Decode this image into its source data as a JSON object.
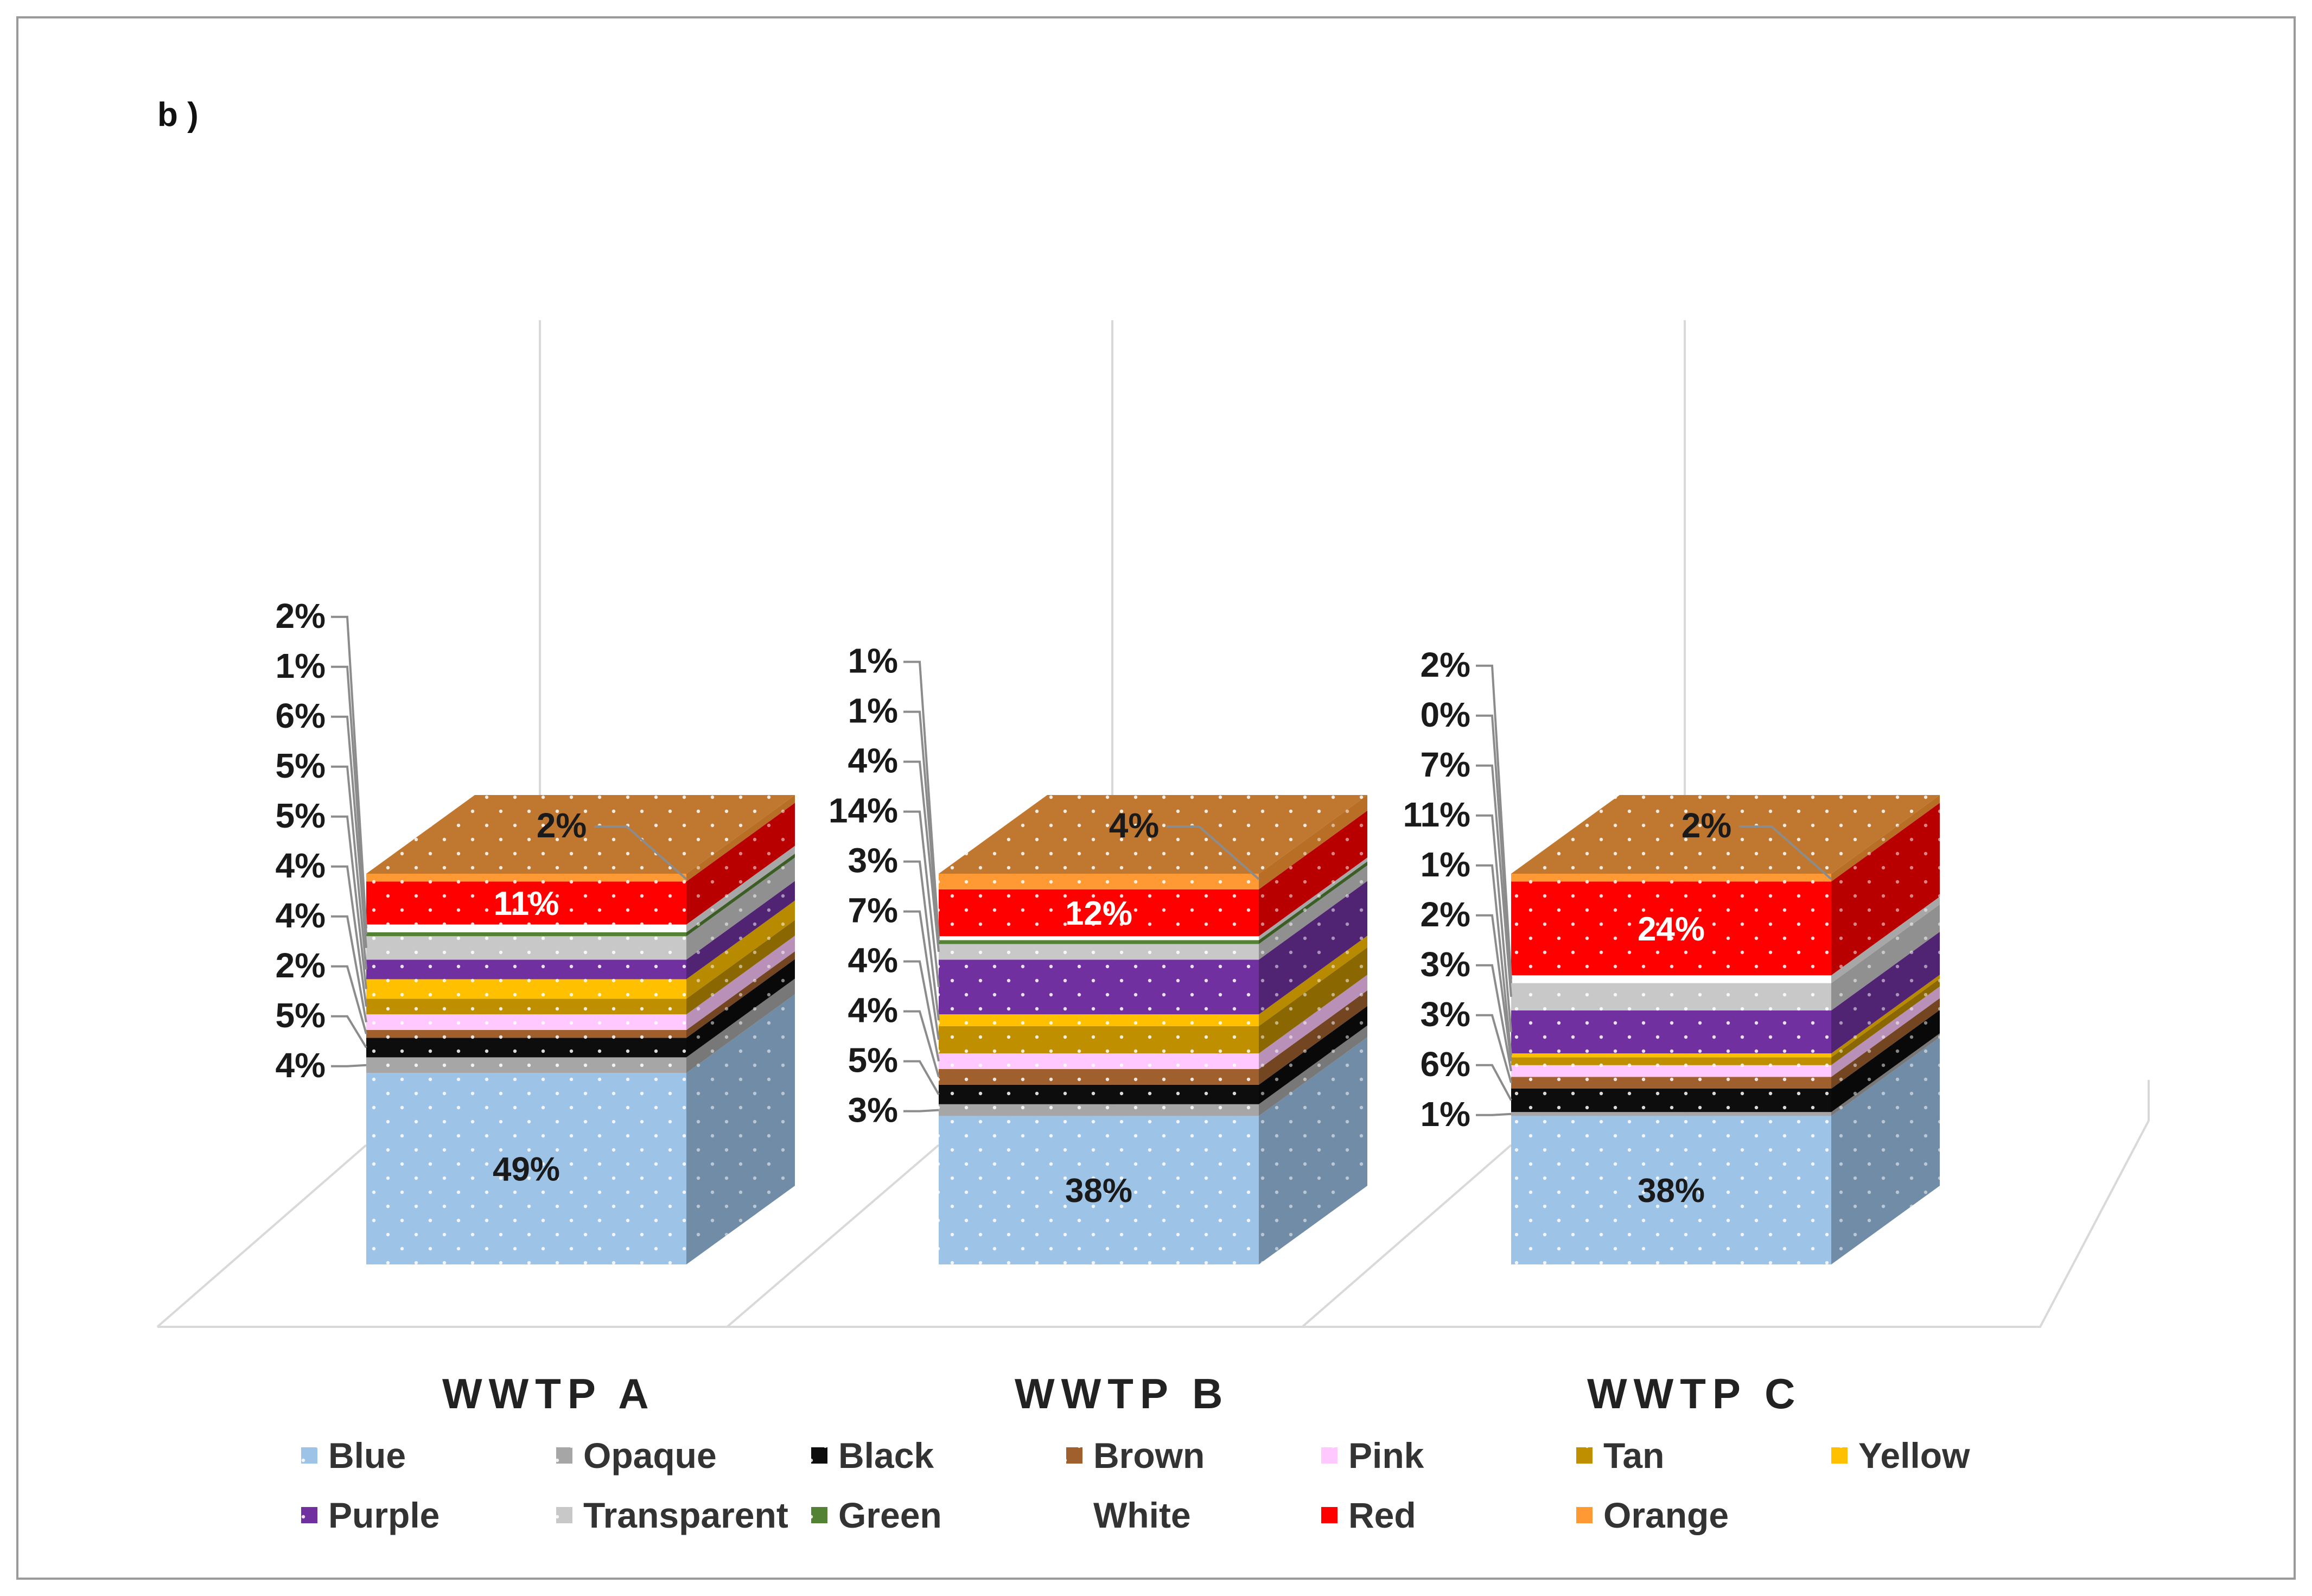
{
  "panel_label": "b )",
  "chart_data": {
    "type": "stacked-bar-3d",
    "title": "",
    "categories": [
      "WWTP A",
      "WWTP B",
      "WWTP C"
    ],
    "series": [
      {
        "name": "Blue",
        "color": "#9DC3E6",
        "values": [
          49,
          38,
          38
        ],
        "labels": [
          "49%",
          "38%",
          "38%"
        ]
      },
      {
        "name": "Opaque",
        "color": "#A6A6A6",
        "values": [
          4,
          3,
          1
        ],
        "labels": [
          "4%",
          "3%",
          "1%"
        ]
      },
      {
        "name": "Black",
        "color": "#0D0D0D",
        "values": [
          5,
          5,
          6
        ],
        "labels": [
          "5%",
          "5%",
          "6%"
        ]
      },
      {
        "name": "Brown",
        "color": "#A0602E",
        "values": [
          2,
          4,
          3
        ],
        "labels": [
          "2%",
          "4%",
          "3%"
        ]
      },
      {
        "name": "Pink",
        "color": "#FFC8FF",
        "values": [
          4,
          4,
          3
        ],
        "labels": [
          "4%",
          "4%",
          "3%"
        ]
      },
      {
        "name": "Tan",
        "color": "#BF8F00",
        "values": [
          4,
          7,
          2
        ],
        "labels": [
          "4%",
          "7%",
          "2%"
        ]
      },
      {
        "name": "Yellow",
        "color": "#FFC000",
        "values": [
          5,
          3,
          1
        ],
        "labels": [
          "5%",
          "3%",
          "1%"
        ]
      },
      {
        "name": "Purple",
        "color": "#7030A0",
        "values": [
          5,
          14,
          11
        ],
        "labels": [
          "5%",
          "14%",
          "11%"
        ]
      },
      {
        "name": "Transparent",
        "color": "#C8C8C8",
        "values": [
          6,
          4,
          7
        ],
        "labels": [
          "6%",
          "4%",
          "7%"
        ]
      },
      {
        "name": "Green",
        "color": "#548235",
        "values": [
          1,
          1,
          0
        ],
        "labels": [
          "1%",
          "1%",
          "0%"
        ]
      },
      {
        "name": "White",
        "color": "#FFFFFF",
        "values": [
          2,
          1,
          2
        ],
        "labels": [
          "2%",
          "1%",
          "2%"
        ]
      },
      {
        "name": "Red",
        "color": "#FF0000",
        "values": [
          11,
          12,
          24
        ],
        "labels": [
          "11%",
          "12%",
          "24%"
        ]
      },
      {
        "name": "Orange",
        "color": "#FF9933",
        "values": [
          2,
          4,
          2
        ],
        "labels": [
          "2%",
          "4%",
          "2%"
        ]
      }
    ],
    "legend": {
      "position": "bottom",
      "columns": 7
    },
    "grid": false,
    "ylim": [
      0,
      100
    ]
  }
}
